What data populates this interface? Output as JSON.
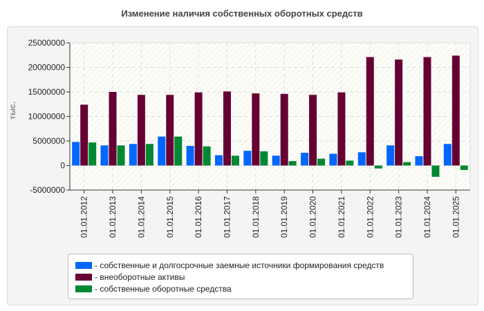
{
  "chart_data": {
    "type": "bar",
    "title": "Изменение наличия собственных оборотных средств",
    "ylabel": "тыс.",
    "xlabel": "",
    "ylim": [
      -5000000,
      25000000
    ],
    "yticks": [
      "25000000",
      "20000000",
      "15000000",
      "10000000",
      "5000000",
      "0",
      "-5000000"
    ],
    "grid": true,
    "legend_position": "bottom",
    "categories": [
      "01.01.2012",
      "01.01.2013",
      "01.01.2014",
      "01.01.2015",
      "01.01.2016",
      "01.01.2017",
      "01.01.2018",
      "01.01.2019",
      "01.01.2020",
      "01.01.2021",
      "01.01.2022",
      "01.01.2023",
      "01.01.2024",
      "01.01.2025"
    ],
    "series": [
      {
        "name": "- собственные и долгосрочные заемные источники формирования средств",
        "color": "#0066ff",
        "values": [
          4800000,
          4100000,
          4400000,
          5900000,
          4000000,
          2100000,
          3000000,
          2000000,
          2600000,
          2400000,
          2700000,
          4100000,
          1900000,
          4400000
        ]
      },
      {
        "name": "- внеоборотные активы",
        "color": "#660033",
        "values": [
          12400000,
          15000000,
          14400000,
          14400000,
          14900000,
          15100000,
          14700000,
          14600000,
          14400000,
          14900000,
          22100000,
          21600000,
          22100000,
          22400000
        ]
      },
      {
        "name": "- собственные оборотные средства",
        "color": "#008833",
        "values": [
          4700000,
          4100000,
          4400000,
          5900000,
          3900000,
          2000000,
          2900000,
          900000,
          1400000,
          1000000,
          -600000,
          700000,
          -2300000,
          -900000
        ]
      }
    ]
  }
}
